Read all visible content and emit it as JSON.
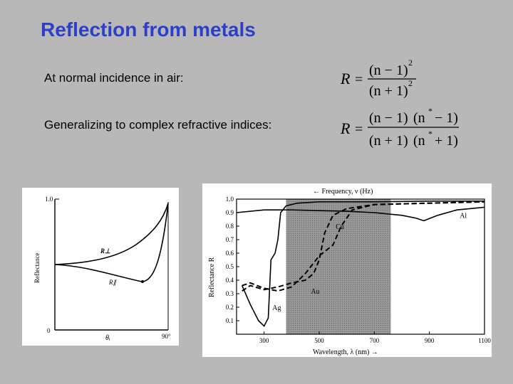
{
  "slide": {
    "title": "Reflection from metals",
    "bullet_normal": "At normal incidence in air:",
    "bullet_complex": "Generalizing to complex refractive indices:"
  },
  "formula1": {
    "lhs": "R",
    "num": "(n − 1)",
    "den": "(n + 1)",
    "exp": "2"
  },
  "formula2": {
    "lhs": "R",
    "num_a": "(n − 1)",
    "num_b": "(n",
    "num_c": "− 1)",
    "den_a": "(n + 1)",
    "den_b": "(n",
    "den_c": "+ 1)",
    "star": "*"
  },
  "figure_left": {
    "ylabel": "Reflectance",
    "ytick_top": "1.0",
    "ytick_bottom": "0",
    "xtick_right": "90°",
    "xlabel": "θᵢ",
    "label_perp": "R⊥",
    "label_par": "R∥"
  },
  "chart_data": {
    "type": "line",
    "title": "← Frequency, ν (Hz)",
    "xlabel": "Wavelength, λ (nm) →",
    "ylabel": "Reflectance R",
    "xlim": [
      200,
      1100
    ],
    "ylim": [
      0,
      1.0
    ],
    "x_ticks": [
      "300",
      "500",
      "700",
      "900",
      "1100"
    ],
    "y_ticks": [
      "0.1",
      "0.2",
      "0.3",
      "0.4",
      "0.5",
      "0.6",
      "0.7",
      "0.8",
      "0.9",
      "1.0"
    ],
    "shaded_band": [
      380,
      760
    ],
    "series": [
      {
        "name": "Al",
        "style": "solid",
        "x": [
          200,
          300,
          400,
          500,
          600,
          700,
          800,
          850,
          880,
          930,
          1000,
          1100
        ],
        "y": [
          0.9,
          0.92,
          0.92,
          0.915,
          0.91,
          0.9,
          0.88,
          0.86,
          0.84,
          0.88,
          0.92,
          0.94
        ]
      },
      {
        "name": "Ag",
        "style": "solid",
        "x": [
          220,
          250,
          280,
          300,
          315,
          325,
          340,
          350,
          360,
          380,
          420,
          500,
          600,
          700,
          900,
          1100
        ],
        "y": [
          0.36,
          0.22,
          0.1,
          0.06,
          0.12,
          0.55,
          0.6,
          0.7,
          0.9,
          0.95,
          0.97,
          0.98,
          0.98,
          0.98,
          0.985,
          0.985
        ]
      },
      {
        "name": "Au",
        "style": "dashed",
        "x": [
          220,
          250,
          300,
          350,
          400,
          450,
          480,
          500,
          520,
          550,
          600,
          700,
          900,
          1100
        ],
        "y": [
          0.32,
          0.36,
          0.33,
          0.35,
          0.38,
          0.4,
          0.45,
          0.55,
          0.75,
          0.88,
          0.93,
          0.96,
          0.97,
          0.98
        ]
      },
      {
        "name": "Cu",
        "style": "dashed",
        "x": [
          220,
          250,
          300,
          350,
          400,
          450,
          500,
          550,
          580,
          620,
          700,
          900,
          1100
        ],
        "y": [
          0.36,
          0.38,
          0.34,
          0.32,
          0.35,
          0.45,
          0.58,
          0.66,
          0.8,
          0.92,
          0.96,
          0.97,
          0.98
        ]
      }
    ],
    "annotations": [
      "Al",
      "Cu",
      "Au",
      "Ag"
    ]
  }
}
